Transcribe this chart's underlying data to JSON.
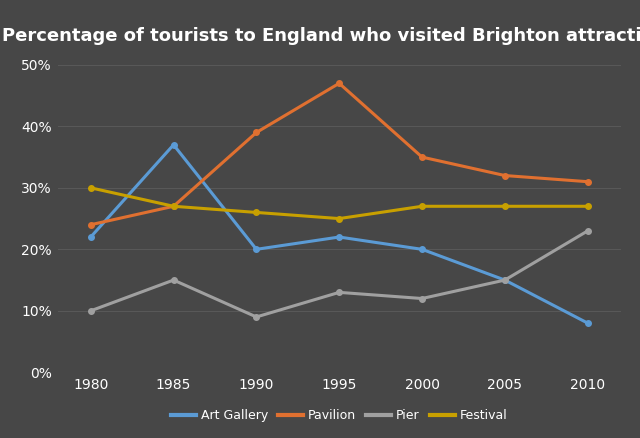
{
  "title": "Percentage of tourists to England who visited Brighton attractions",
  "years": [
    1980,
    1985,
    1990,
    1995,
    2000,
    2005,
    2010
  ],
  "series": {
    "Art Gallery": {
      "values": [
        22,
        37,
        20,
        22,
        20,
        15,
        8
      ],
      "color": "#5B9BD5",
      "marker": "o"
    },
    "Pavilion": {
      "values": [
        24,
        27,
        39,
        47,
        35,
        32,
        31
      ],
      "color": "#E07030",
      "marker": "o"
    },
    "Pier": {
      "values": [
        10,
        15,
        9,
        13,
        12,
        15,
        23
      ],
      "color": "#A0A0A0",
      "marker": "o"
    },
    "Festival": {
      "values": [
        30,
        27,
        26,
        25,
        27,
        27,
        27
      ],
      "color": "#C8A000",
      "marker": "o"
    }
  },
  "xlim": [
    1978,
    2012
  ],
  "ylim": [
    0,
    52
  ],
  "yticks": [
    0,
    10,
    20,
    30,
    40,
    50
  ],
  "xticks": [
    1980,
    1985,
    1990,
    1995,
    2000,
    2005,
    2010
  ],
  "background_color": "#474747",
  "plot_bg_color": "#474747",
  "grid_color": "#585858",
  "text_color": "#FFFFFF",
  "title_fontsize": 13,
  "axis_fontsize": 10,
  "legend_fontsize": 9,
  "line_width": 2.2,
  "marker_size": 4
}
